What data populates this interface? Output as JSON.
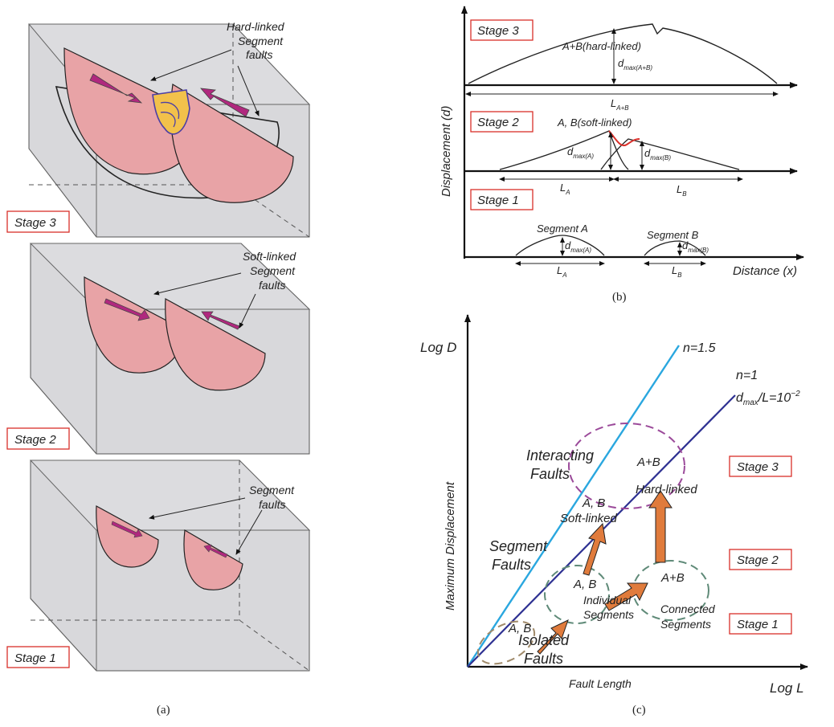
{
  "panel_a": {
    "caption": "(a)",
    "stages": [
      {
        "label": "Stage 3",
        "annotation": [
          "Hard-linked",
          "Segment",
          "faults"
        ]
      },
      {
        "label": "Stage 2",
        "annotation": [
          "Soft-linked",
          "Segment",
          "faults"
        ]
      },
      {
        "label": "Stage 1",
        "annotation": [
          "Segment",
          "faults"
        ]
      }
    ]
  },
  "panel_b": {
    "caption": "(b)",
    "y_axis_label": "Displacement (d)",
    "x_axis_label": "Distance (x)",
    "stage3": {
      "label": "Stage 3",
      "title": "A+B(hard-linked)",
      "dmax": "d",
      "dmax_sub": "max(A+B)",
      "length": "L",
      "length_sub": "A+B"
    },
    "stage2": {
      "label": "Stage 2",
      "title": "A, B(soft-linked)",
      "dmax_a": "d",
      "dmax_a_sub": "max(A)",
      "dmax_b": "d",
      "dmax_b_sub": "max(B)",
      "la": "L",
      "la_sub": "A",
      "lb": "L",
      "lb_sub": "B"
    },
    "stage1": {
      "label": "Stage 1",
      "seg_a": "Segment A",
      "seg_b": "Segment B",
      "dmax_a": "d",
      "dmax_a_sub": "max(A)",
      "dmax_b": "d",
      "dmax_b_sub": "max(B)",
      "la": "L",
      "la_sub": "A",
      "lb": "L",
      "lb_sub": "B"
    }
  },
  "panel_c": {
    "caption": "(c)",
    "y_top_label": "Log D",
    "x_right_label": "Log L",
    "y_axis_label": "Maximum Displacement",
    "x_axis_label": "Fault Length",
    "line1": "n=1.5",
    "line2": "n=1",
    "ratio_d": "d",
    "ratio_sub": "max",
    "ratio_rest": "/L=10",
    "ratio_exp": "−2",
    "interacting": [
      "Interacting",
      "Faults"
    ],
    "segment_faults": [
      "Segment",
      "Faults"
    ],
    "isolated": [
      "Isolated",
      "Faults"
    ],
    "ab": "A, B",
    "aplusb": "A+B",
    "soft_linked": "Soft-linked",
    "hard_linked": "Hard-linked",
    "individual": [
      "Individual",
      "Segments"
    ],
    "connected": [
      "Connected",
      "Segments"
    ],
    "stages": [
      "Stage 3",
      "Stage 2",
      "Stage 1"
    ]
  },
  "colors": {
    "fault_fill": "#e8a3a6",
    "arrow_magenta": "#b0287e",
    "box_grey": "#d8d8db",
    "stage_border": "#d9302a",
    "line_cyan": "#2aa7df",
    "line_navy": "#2e3192",
    "orange_arrow": "#e07b3c"
  }
}
